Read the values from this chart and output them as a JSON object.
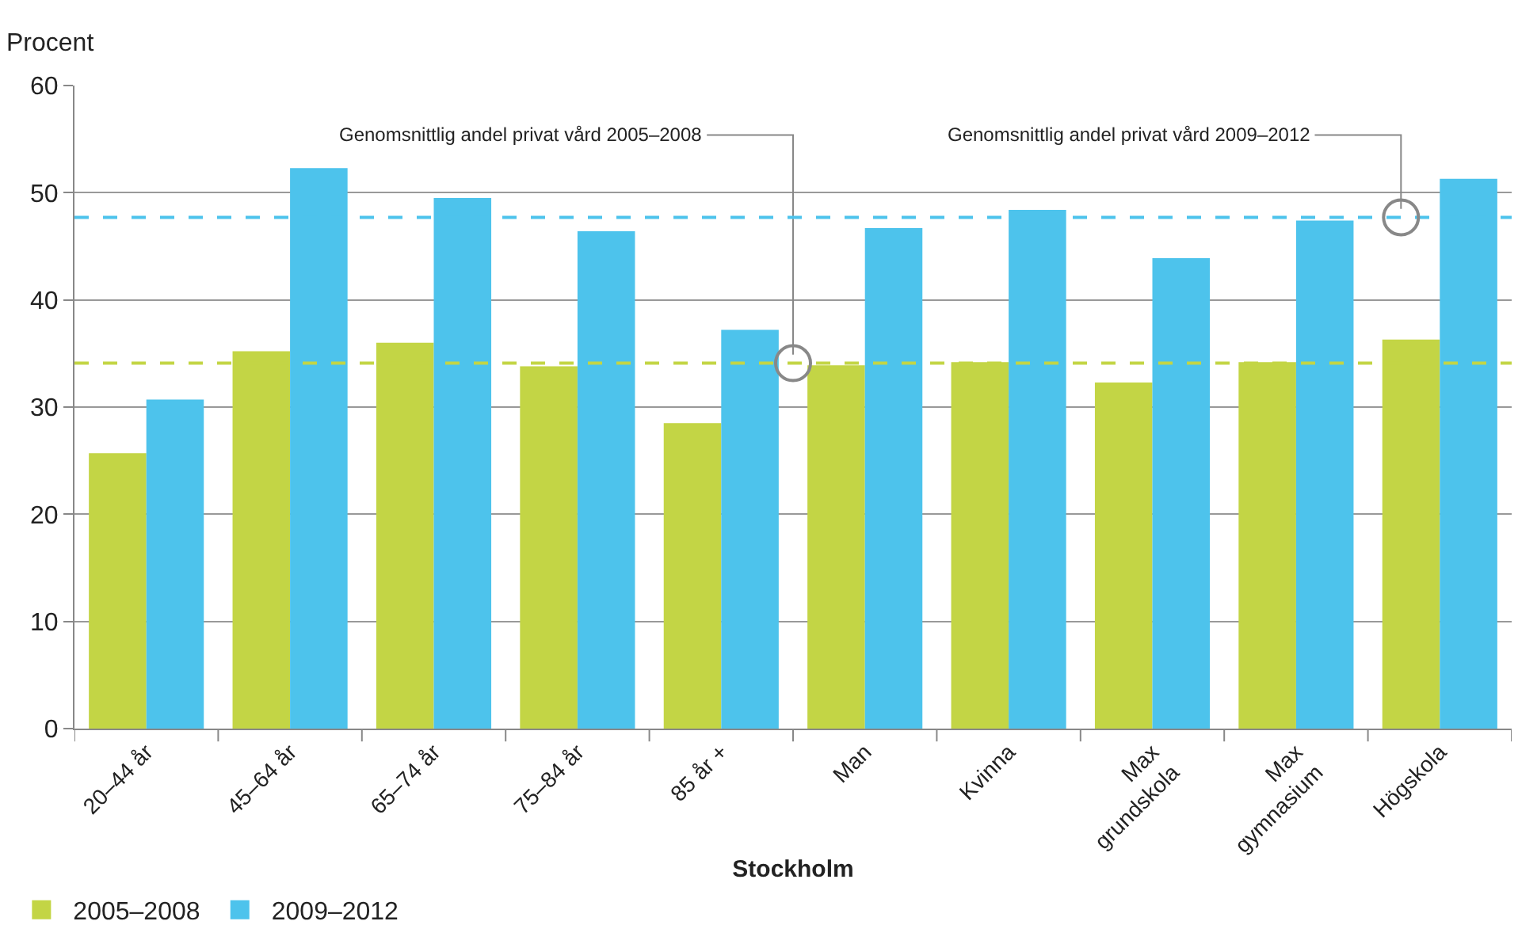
{
  "chart_data": {
    "type": "bar",
    "xlabel": "Stockholm",
    "ylabel": "Procent",
    "categories": [
      "20–44 år",
      "45–64 år",
      "65–74 år",
      "75–84 år",
      "85 år +",
      "Man",
      "Kvinna",
      "Max grundskola",
      "Max gymnasium",
      "Högskola"
    ],
    "series": [
      {
        "name": "2005–2008",
        "color": "#c3d545",
        "values": [
          25.7,
          35.2,
          36.0,
          33.8,
          28.5,
          33.9,
          34.2,
          32.3,
          34.2,
          36.3
        ]
      },
      {
        "name": "2009–2012",
        "color": "#4dc3ec",
        "values": [
          30.7,
          52.3,
          49.5,
          46.4,
          37.2,
          46.7,
          48.4,
          43.9,
          47.4,
          51.3
        ]
      }
    ],
    "ylim": [
      0,
      60
    ],
    "yticks": [
      0,
      10,
      20,
      30,
      40,
      50,
      60
    ],
    "grid": "y",
    "legend": "bottom left",
    "ref_lines": [
      {
        "axis": "y",
        "value": 34.1,
        "label": "Genomsnittlig andel privat vård 2005–2008",
        "color": "#c3d545",
        "line_style": "dashed"
      },
      {
        "axis": "y",
        "value": 47.7,
        "label": "Genomsnittlig andel privat vård 2009–2012",
        "color": "#4dc3ec",
        "line_style": "dashed"
      }
    ]
  }
}
